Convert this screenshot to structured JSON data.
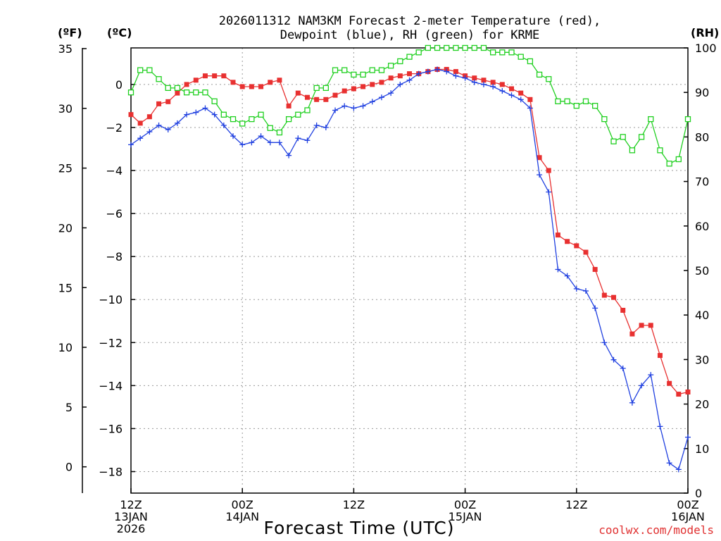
{
  "colors": {
    "temperature": "#e83030",
    "dewpoint": "#2040e0",
    "rh": "#20d020",
    "credit": "#e03030"
  },
  "chart_data": {
    "type": "line",
    "title_lines": [
      "2026011312 NAM3KM Forecast 2-meter Temperature (red),",
      "Dewpoint (blue), RH (green) for KRME"
    ],
    "units": {
      "fahrenheit": "(ºF)",
      "celsius": "(ºC)",
      "rh": "(RH)"
    },
    "xlabel": "Forecast Time (UTC)",
    "credit": "coolwx.com/models",
    "x_range": [
      0,
      60
    ],
    "x_ticks": [
      {
        "x": 0,
        "lines": [
          "12Z",
          "13JAN",
          "2026"
        ]
      },
      {
        "x": 12,
        "lines": [
          "00Z",
          "14JAN"
        ]
      },
      {
        "x": 24,
        "lines": [
          "12Z"
        ]
      },
      {
        "x": 36,
        "lines": [
          "00Z",
          "15JAN"
        ]
      },
      {
        "x": 48,
        "lines": [
          "12Z"
        ]
      },
      {
        "x": 60,
        "lines": [
          "00Z",
          "16JAN"
        ]
      }
    ],
    "celsius_axis": {
      "range": [
        -19,
        1.7
      ],
      "ticks": [
        0,
        -2,
        -4,
        -6,
        -8,
        -10,
        -12,
        -14,
        -16,
        -18
      ]
    },
    "fahrenheit_axis": {
      "range": [
        -2.2,
        35.06
      ],
      "ticks": [
        35,
        30,
        25,
        20,
        15,
        10,
        5,
        0
      ]
    },
    "rh_axis": {
      "range": [
        0,
        100
      ],
      "ticks": [
        100,
        90,
        80,
        70,
        60,
        50,
        40,
        30,
        20,
        10,
        0
      ]
    },
    "series": [
      {
        "name": "Temperature",
        "unit": "C",
        "marker": "filled-square",
        "values": [
          [
            0,
            -1.4
          ],
          [
            1,
            -1.8
          ],
          [
            2,
            -1.5
          ],
          [
            3,
            -0.9
          ],
          [
            4,
            -0.8
          ],
          [
            5,
            -0.4
          ],
          [
            6,
            0
          ],
          [
            7,
            0.2
          ],
          [
            8,
            0.4
          ],
          [
            9,
            0.4
          ],
          [
            10,
            0.4
          ],
          [
            11,
            0.1
          ],
          [
            12,
            -0.1
          ],
          [
            13,
            -0.1
          ],
          [
            14,
            -0.1
          ],
          [
            15,
            0.1
          ],
          [
            16,
            0.2
          ],
          [
            17,
            -1.0
          ],
          [
            18,
            -0.4
          ],
          [
            19,
            -0.6
          ],
          [
            20,
            -0.7
          ],
          [
            21,
            -0.7
          ],
          [
            22,
            -0.5
          ],
          [
            23,
            -0.3
          ],
          [
            24,
            -0.2
          ],
          [
            25,
            -0.1
          ],
          [
            26,
            0
          ],
          [
            27,
            0.1
          ],
          [
            28,
            0.3
          ],
          [
            29,
            0.4
          ],
          [
            30,
            0.5
          ],
          [
            31,
            0.5
          ],
          [
            32,
            0.6
          ],
          [
            33,
            0.7
          ],
          [
            34,
            0.7
          ],
          [
            35,
            0.6
          ],
          [
            36,
            0.4
          ],
          [
            37,
            0.3
          ],
          [
            38,
            0.2
          ],
          [
            39,
            0.1
          ],
          [
            40,
            0
          ],
          [
            41,
            -0.2
          ],
          [
            42,
            -0.4
          ],
          [
            43,
            -0.7
          ],
          [
            44,
            -3.4
          ],
          [
            45,
            -4.0
          ],
          [
            46,
            -7.0
          ],
          [
            47,
            -7.3
          ],
          [
            48,
            -7.5
          ],
          [
            49,
            -7.8
          ],
          [
            50,
            -8.6
          ],
          [
            51,
            -9.8
          ],
          [
            52,
            -9.9
          ],
          [
            53,
            -10.5
          ],
          [
            54,
            -11.6
          ],
          [
            55,
            -11.2
          ],
          [
            56,
            -11.2
          ],
          [
            57,
            -12.6
          ],
          [
            58,
            -13.9
          ],
          [
            59,
            -14.4
          ],
          [
            60,
            -14.3
          ]
        ]
      },
      {
        "name": "Dewpoint",
        "unit": "C",
        "marker": "plus",
        "values": [
          [
            0,
            -2.8
          ],
          [
            1,
            -2.5
          ],
          [
            2,
            -2.2
          ],
          [
            3,
            -1.9
          ],
          [
            4,
            -2.1
          ],
          [
            5,
            -1.8
          ],
          [
            6,
            -1.4
          ],
          [
            7,
            -1.3
          ],
          [
            8,
            -1.1
          ],
          [
            9,
            -1.4
          ],
          [
            10,
            -1.9
          ],
          [
            11,
            -2.4
          ],
          [
            12,
            -2.8
          ],
          [
            13,
            -2.7
          ],
          [
            14,
            -2.4
          ],
          [
            15,
            -2.7
          ],
          [
            16,
            -2.7
          ],
          [
            17,
            -3.3
          ],
          [
            18,
            -2.5
          ],
          [
            19,
            -2.6
          ],
          [
            20,
            -1.9
          ],
          [
            21,
            -2.0
          ],
          [
            22,
            -1.2
          ],
          [
            23,
            -1.0
          ],
          [
            24,
            -1.1
          ],
          [
            25,
            -1.0
          ],
          [
            26,
            -0.8
          ],
          [
            27,
            -0.6
          ],
          [
            28,
            -0.4
          ],
          [
            29,
            0
          ],
          [
            30,
            0.2
          ],
          [
            31,
            0.5
          ],
          [
            32,
            0.6
          ],
          [
            33,
            0.7
          ],
          [
            34,
            0.6
          ],
          [
            35,
            0.4
          ],
          [
            36,
            0.3
          ],
          [
            37,
            0.1
          ],
          [
            38,
            0
          ],
          [
            39,
            -0.1
          ],
          [
            40,
            -0.3
          ],
          [
            41,
            -0.5
          ],
          [
            42,
            -0.7
          ],
          [
            43,
            -1.1
          ],
          [
            44,
            -4.2
          ],
          [
            45,
            -5.0
          ],
          [
            46,
            -8.6
          ],
          [
            47,
            -8.9
          ],
          [
            48,
            -9.5
          ],
          [
            49,
            -9.6
          ],
          [
            50,
            -10.4
          ],
          [
            51,
            -12.0
          ],
          [
            52,
            -12.8
          ],
          [
            53,
            -13.2
          ],
          [
            54,
            -14.8
          ],
          [
            55,
            -14.0
          ],
          [
            56,
            -13.5
          ],
          [
            57,
            -15.9
          ],
          [
            58,
            -17.6
          ],
          [
            59,
            -17.9
          ],
          [
            60,
            -16.4
          ]
        ]
      },
      {
        "name": "RH",
        "unit": "%",
        "marker": "open-square",
        "values": [
          [
            0,
            90
          ],
          [
            1,
            95
          ],
          [
            2,
            95
          ],
          [
            3,
            93
          ],
          [
            4,
            91
          ],
          [
            5,
            91
          ],
          [
            6,
            90
          ],
          [
            7,
            90
          ],
          [
            8,
            90
          ],
          [
            9,
            88
          ],
          [
            10,
            85
          ],
          [
            11,
            84
          ],
          [
            12,
            83
          ],
          [
            13,
            84
          ],
          [
            14,
            85
          ],
          [
            15,
            82
          ],
          [
            16,
            81
          ],
          [
            17,
            84
          ],
          [
            18,
            85
          ],
          [
            19,
            86
          ],
          [
            20,
            91
          ],
          [
            21,
            91
          ],
          [
            22,
            95
          ],
          [
            23,
            95
          ],
          [
            24,
            94
          ],
          [
            25,
            94
          ],
          [
            26,
            95
          ],
          [
            27,
            95
          ],
          [
            28,
            96
          ],
          [
            29,
            97
          ],
          [
            30,
            98
          ],
          [
            31,
            99
          ],
          [
            32,
            100
          ],
          [
            33,
            100
          ],
          [
            34,
            100
          ],
          [
            35,
            100
          ],
          [
            36,
            100
          ],
          [
            37,
            100
          ],
          [
            38,
            100
          ],
          [
            39,
            99
          ],
          [
            40,
            99
          ],
          [
            41,
            99
          ],
          [
            42,
            98
          ],
          [
            43,
            97
          ],
          [
            44,
            94
          ],
          [
            45,
            93
          ],
          [
            46,
            88
          ],
          [
            47,
            88
          ],
          [
            48,
            87
          ],
          [
            49,
            88
          ],
          [
            50,
            87
          ],
          [
            51,
            84
          ],
          [
            52,
            79
          ],
          [
            53,
            80
          ],
          [
            54,
            77
          ],
          [
            55,
            80
          ],
          [
            56,
            84
          ],
          [
            57,
            77
          ],
          [
            58,
            74
          ],
          [
            59,
            75
          ],
          [
            60,
            84
          ]
        ]
      }
    ]
  }
}
